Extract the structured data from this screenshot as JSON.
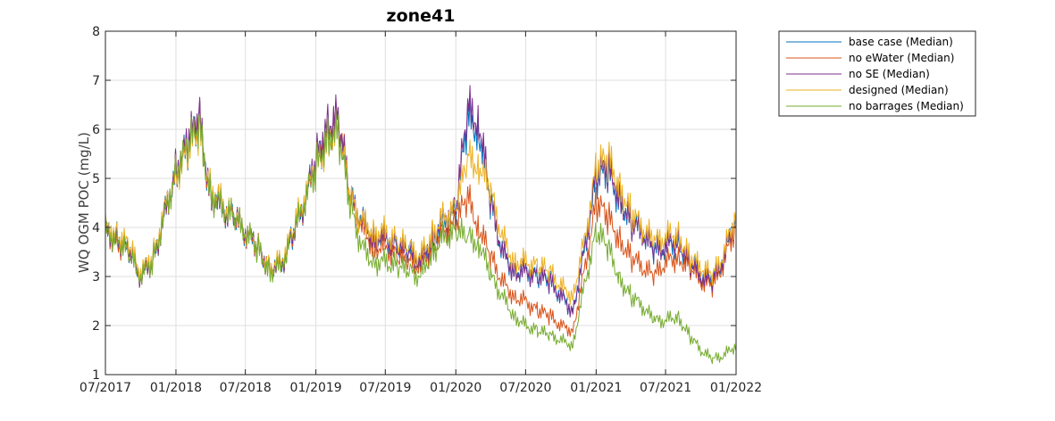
{
  "chart_data": {
    "type": "line",
    "title": "zone41",
    "xlabel": "",
    "ylabel": "WQ OGM POC (mg/L)",
    "ylim": [
      1,
      8
    ],
    "yticks": [
      "1",
      "2",
      "3",
      "4",
      "5",
      "6",
      "7",
      "8"
    ],
    "xlim": [
      "2017-07-01",
      "2022-01-01"
    ],
    "xticks": [
      "07/2017",
      "01/2018",
      "07/2018",
      "01/2019",
      "07/2019",
      "01/2020",
      "07/2020",
      "01/2021",
      "07/2021",
      "01/2022"
    ],
    "grid": true,
    "legend_position": "outside-top-right",
    "x": [
      "2017-07-01",
      "2017-08-01",
      "2017-09-01",
      "2017-10-01",
      "2017-11-01",
      "2017-12-01",
      "2018-01-01",
      "2018-02-01",
      "2018-03-01",
      "2018-04-01",
      "2018-05-01",
      "2018-06-01",
      "2018-07-01",
      "2018-08-01",
      "2018-09-01",
      "2018-10-01",
      "2018-11-01",
      "2018-12-01",
      "2019-01-01",
      "2019-02-01",
      "2019-03-01",
      "2019-04-01",
      "2019-05-01",
      "2019-06-01",
      "2019-07-01",
      "2019-08-01",
      "2019-09-01",
      "2019-10-01",
      "2019-11-01",
      "2019-12-01",
      "2020-01-01",
      "2020-02-01",
      "2020-03-01",
      "2020-04-01",
      "2020-05-01",
      "2020-06-01",
      "2020-07-01",
      "2020-08-01",
      "2020-09-01",
      "2020-10-01",
      "2020-11-01",
      "2020-12-01",
      "2021-01-01",
      "2021-02-01",
      "2021-03-01",
      "2021-04-01",
      "2021-05-01",
      "2021-06-01",
      "2021-07-01",
      "2021-08-01",
      "2021-09-01",
      "2021-10-01",
      "2021-11-01",
      "2021-12-01",
      "2022-01-01"
    ],
    "series": [
      {
        "name": "base case (Median)",
        "color": "#0072bd",
        "values": [
          3.9,
          3.8,
          3.5,
          3.0,
          3.3,
          4.2,
          5.2,
          5.6,
          6.2,
          4.7,
          4.4,
          4.2,
          3.9,
          3.6,
          3.2,
          3.2,
          3.8,
          4.5,
          5.3,
          6.0,
          6.1,
          4.6,
          4.1,
          3.8,
          3.8,
          3.6,
          3.5,
          3.3,
          3.8,
          4.1,
          4.3,
          6.2,
          6.0,
          4.5,
          3.5,
          3.1,
          3.1,
          3.0,
          2.9,
          2.6,
          2.3,
          3.5,
          5.0,
          5.1,
          4.6,
          4.1,
          3.9,
          3.5,
          3.6,
          3.7,
          3.3,
          3.0,
          2.9,
          3.4,
          4.2
        ]
      },
      {
        "name": "no eWater (Median)",
        "color": "#d95319",
        "values": [
          3.9,
          3.7,
          3.5,
          3.0,
          3.3,
          4.2,
          5.2,
          5.6,
          6.2,
          4.7,
          4.4,
          4.2,
          3.9,
          3.6,
          3.2,
          3.2,
          3.8,
          4.5,
          5.3,
          6.0,
          6.2,
          4.6,
          4.0,
          3.6,
          3.6,
          3.4,
          3.3,
          3.2,
          3.6,
          3.9,
          4.1,
          4.6,
          4.0,
          3.4,
          2.9,
          2.6,
          2.5,
          2.3,
          2.2,
          2.0,
          1.9,
          3.1,
          4.5,
          4.2,
          3.8,
          3.4,
          3.2,
          3.0,
          3.3,
          3.4,
          3.2,
          2.9,
          2.8,
          3.3,
          4.1
        ]
      },
      {
        "name": "no SE (Median)",
        "color": "#7e2f8e",
        "values": [
          3.9,
          3.8,
          3.5,
          3.0,
          3.3,
          4.2,
          5.2,
          5.7,
          6.3,
          4.7,
          4.4,
          4.2,
          3.9,
          3.6,
          3.2,
          3.2,
          3.8,
          4.5,
          5.4,
          6.2,
          6.2,
          4.6,
          4.1,
          3.8,
          3.8,
          3.6,
          3.5,
          3.3,
          3.8,
          4.2,
          4.4,
          6.4,
          6.2,
          4.5,
          3.5,
          3.1,
          3.1,
          3.0,
          2.9,
          2.6,
          2.3,
          3.5,
          5.1,
          5.2,
          4.7,
          4.1,
          3.9,
          3.5,
          3.6,
          3.8,
          3.3,
          3.0,
          2.9,
          3.4,
          4.3
        ]
      },
      {
        "name": "designed (Median)",
        "color": "#edb120",
        "values": [
          4.0,
          3.9,
          3.6,
          3.1,
          3.4,
          4.3,
          5.1,
          5.5,
          6.0,
          4.8,
          4.5,
          4.2,
          3.9,
          3.6,
          3.2,
          3.3,
          3.9,
          4.6,
          5.2,
          5.8,
          5.9,
          4.6,
          4.1,
          3.9,
          3.9,
          3.7,
          3.6,
          3.4,
          3.9,
          4.2,
          4.4,
          5.4,
          5.3,
          4.7,
          3.8,
          3.3,
          3.3,
          3.2,
          3.1,
          2.8,
          2.6,
          3.7,
          5.2,
          5.4,
          4.9,
          4.3,
          4.0,
          3.7,
          3.8,
          3.9,
          3.4,
          3.2,
          3.0,
          3.5,
          4.3
        ]
      },
      {
        "name": "no barrages (Median)",
        "color": "#77ac30",
        "values": [
          3.9,
          3.8,
          3.4,
          3.0,
          3.3,
          4.2,
          5.2,
          5.6,
          6.1,
          4.7,
          4.4,
          4.2,
          3.9,
          3.6,
          3.1,
          3.2,
          3.8,
          4.5,
          5.2,
          5.9,
          5.9,
          4.4,
          3.6,
          3.3,
          3.3,
          3.2,
          3.1,
          3.0,
          3.5,
          3.8,
          3.9,
          3.8,
          3.7,
          3.0,
          2.6,
          2.2,
          2.0,
          1.9,
          1.8,
          1.7,
          1.6,
          2.8,
          3.9,
          3.6,
          3.0,
          2.6,
          2.4,
          2.1,
          2.1,
          2.2,
          1.8,
          1.5,
          1.3,
          1.4,
          1.6
        ]
      }
    ]
  }
}
